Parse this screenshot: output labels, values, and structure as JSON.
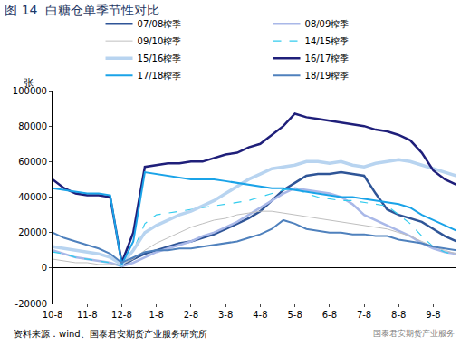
{
  "chart_data": {
    "type": "line",
    "title": "图 14  白糖仓单季节性对比",
    "y_label": "张",
    "source": "资料来源：wind、国泰君安期货产业服务研究所",
    "watermark": "国泰君安期货产业服务",
    "categories": [
      "10-8",
      null,
      null,
      "11-8",
      null,
      null,
      "12-8",
      null,
      null,
      "1-8",
      null,
      null,
      "2-8",
      null,
      null,
      "3-8",
      null,
      null,
      "4-8",
      null,
      null,
      "5-8",
      null,
      null,
      "6-8",
      null,
      null,
      "7-8",
      null,
      null,
      "8-8",
      null,
      null,
      "9-8",
      null,
      null
    ],
    "ylim": [
      -20000,
      100000
    ],
    "yticks": [
      -20000,
      0,
      20000,
      40000,
      60000,
      80000,
      100000
    ],
    "grid": false,
    "legend": "top",
    "series": [
      {
        "name": "07/08榨季",
        "color": "#2f5597",
        "line_style": "solid",
        "values": [
          null,
          null,
          null,
          null,
          null,
          null,
          1000,
          5000,
          8000,
          10000,
          12000,
          14000,
          15000,
          17000,
          19000,
          22000,
          25000,
          28000,
          32000,
          38000,
          44000,
          48000,
          52000,
          53000,
          53000,
          54000,
          53000,
          52000,
          42000,
          33000,
          30000,
          28000,
          26000,
          22000,
          18000,
          15000
        ]
      },
      {
        "name": "08/09榨季",
        "color": "#a9b8e8",
        "line_style": "solid",
        "values": [
          10000,
          8000,
          6000,
          5000,
          4000,
          3000,
          1000,
          3000,
          6000,
          9000,
          11000,
          13000,
          15000,
          18000,
          20000,
          23000,
          26000,
          30000,
          34000,
          38000,
          42000,
          45000,
          44000,
          43000,
          42000,
          40000,
          36000,
          30000,
          27000,
          24000,
          21000,
          18000,
          14000,
          11000,
          9000,
          8000
        ]
      },
      {
        "name": "09/10榨季",
        "color": "#bfbfbf",
        "line_style": "solid",
        "values": [
          5000,
          4000,
          3000,
          3000,
          2000,
          2000,
          2000,
          5000,
          10000,
          14000,
          17000,
          20000,
          23000,
          25000,
          27000,
          28000,
          30000,
          31000,
          32000,
          32000,
          31000,
          30000,
          29000,
          28000,
          27000,
          26000,
          25000,
          24000,
          23000,
          22000,
          20000,
          18000,
          15000,
          12000,
          10000,
          8000
        ]
      },
      {
        "name": "14/15榨季",
        "color": "#33ccee",
        "line_style": "dashed",
        "values": [
          9000,
          8000,
          6000,
          5000,
          4000,
          3000,
          1000,
          10000,
          25000,
          30000,
          31000,
          32000,
          33000,
          34000,
          35000,
          36000,
          37000,
          38000,
          40000,
          42000,
          44000,
          45000,
          42000,
          40000,
          39000,
          38000,
          38000,
          37000,
          36000,
          35000,
          30000,
          25000,
          18000,
          12000,
          9000,
          7000
        ]
      },
      {
        "name": "15/16榨季",
        "color": "#b8d4f0",
        "line_style": "solid",
        "values": [
          12000,
          11000,
          10000,
          9000,
          8000,
          6000,
          2000,
          10000,
          20000,
          24000,
          27000,
          30000,
          32000,
          35000,
          38000,
          42000,
          46000,
          50000,
          53000,
          56000,
          57000,
          58000,
          60000,
          60000,
          59000,
          60000,
          58000,
          57000,
          59000,
          60000,
          61000,
          60000,
          58000,
          56000,
          54000,
          52000
        ]
      },
      {
        "name": "16/17榨季",
        "color": "#1f1f7a",
        "line_style": "solid",
        "values": [
          50000,
          45000,
          42000,
          41000,
          41000,
          40000,
          3000,
          20000,
          57000,
          58000,
          59000,
          59000,
          60000,
          60000,
          62000,
          64000,
          65000,
          68000,
          70000,
          75000,
          80000,
          87000,
          85000,
          84000,
          83000,
          82000,
          81000,
          80000,
          78000,
          77000,
          75000,
          72000,
          65000,
          55000,
          50000,
          47000
        ]
      },
      {
        "name": "17/18榨季",
        "color": "#1aa3e8",
        "line_style": "solid",
        "values": [
          45000,
          44000,
          43000,
          42000,
          42000,
          41000,
          2000,
          15000,
          54000,
          53000,
          52000,
          51000,
          50000,
          50000,
          50000,
          49000,
          48000,
          47000,
          46000,
          45000,
          45000,
          44000,
          43000,
          42000,
          41000,
          40000,
          40000,
          39000,
          38000,
          37000,
          36000,
          34000,
          30000,
          27000,
          24000,
          21000
        ]
      },
      {
        "name": "18/19榨季",
        "color": "#4f81bd",
        "line_style": "solid",
        "values": [
          20000,
          17000,
          15000,
          13000,
          11000,
          8000,
          3000,
          6000,
          9000,
          10000,
          10000,
          11000,
          11000,
          12000,
          13000,
          14000,
          15000,
          17000,
          19000,
          22000,
          27000,
          25000,
          22000,
          21000,
          20000,
          20000,
          19000,
          19000,
          18000,
          18000,
          16000,
          15000,
          14000,
          12000,
          11000,
          10000
        ]
      }
    ]
  }
}
